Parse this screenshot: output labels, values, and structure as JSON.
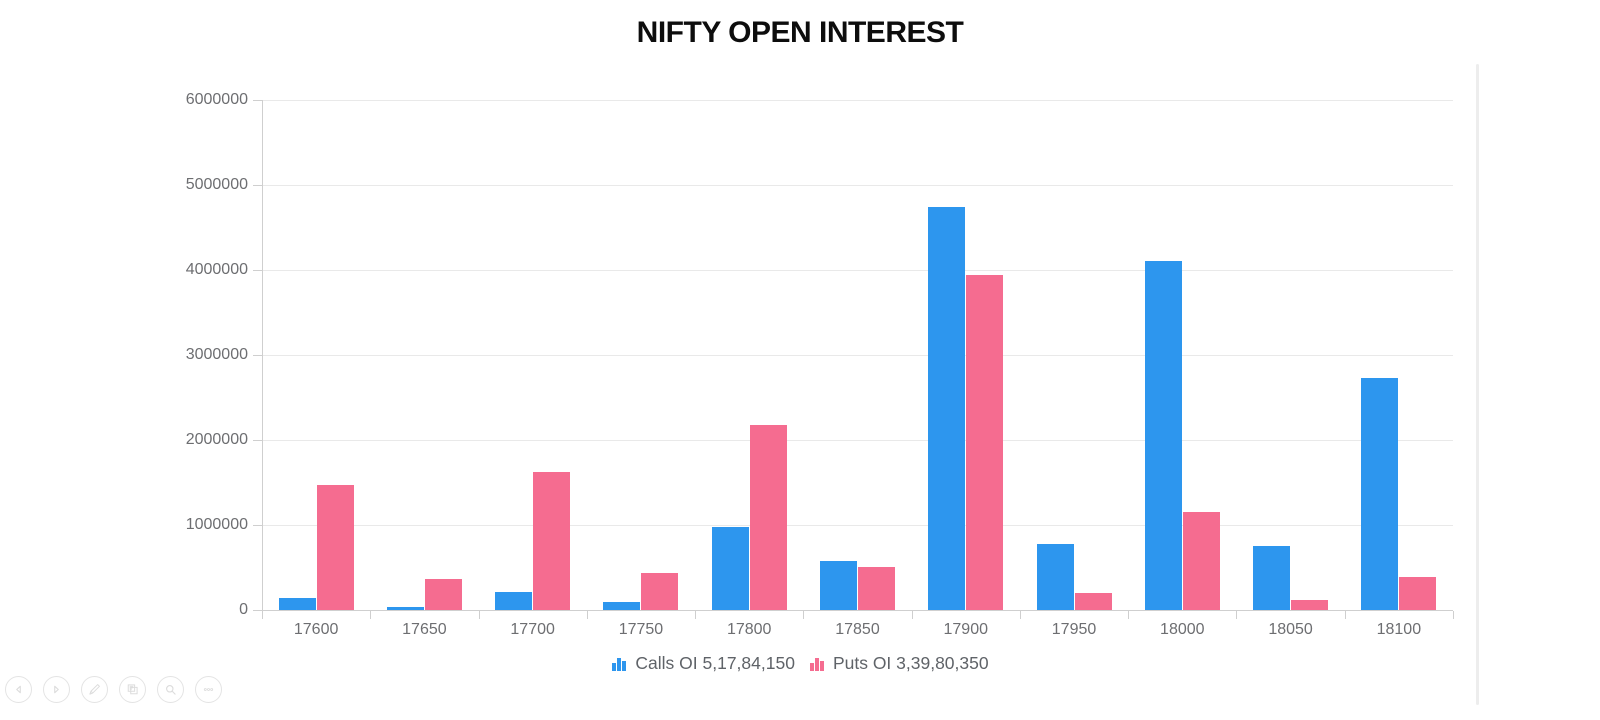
{
  "title": "NIFTY OPEN INTEREST",
  "chart_data": {
    "type": "bar",
    "title": "NIFTY OPEN INTEREST",
    "categories": [
      "17600",
      "17650",
      "17700",
      "17750",
      "17800",
      "17850",
      "17900",
      "17950",
      "18000",
      "18050",
      "18100"
    ],
    "series": [
      {
        "name": "Calls OI",
        "legend_label": "Calls OI 5,17,84,150",
        "color": "#2d96ee",
        "values": [
          140000,
          40000,
          210000,
          95000,
          980000,
          580000,
          4740000,
          775000,
          4100000,
          755000,
          2730000
        ]
      },
      {
        "name": "Puts OI",
        "legend_label": "Puts OI 3,39,80,350",
        "color": "#f56c90",
        "values": [
          1470000,
          370000,
          1620000,
          430000,
          2180000,
          500000,
          3940000,
          195000,
          1150000,
          120000,
          390000
        ]
      }
    ],
    "xlabel": "",
    "ylabel": "",
    "ylim": [
      0,
      6000000
    ],
    "y_ticks": [
      0,
      1000000,
      2000000,
      3000000,
      4000000,
      5000000,
      6000000
    ],
    "grid": true,
    "legend_position": "bottom"
  },
  "legend_totals": {
    "calls": "5,17,84,150",
    "puts": "3,39,80,350"
  },
  "nav": {
    "buttons": [
      {
        "label": "previous",
        "icon": "triangle-left-icon"
      },
      {
        "label": "next",
        "icon": "triangle-right-icon"
      },
      {
        "label": "edit",
        "icon": "pencil-icon"
      },
      {
        "label": "copy-view",
        "icon": "overlapping-squares-icon"
      },
      {
        "label": "zoom",
        "icon": "magnifier-icon"
      },
      {
        "label": "more",
        "icon": "ellipsis-icon"
      }
    ]
  },
  "colors": {
    "calls_blue": "#2d96ee",
    "puts_pink": "#f56c90",
    "axis_text": "#6d6e71",
    "legend_text": "#5f6368",
    "grid_line": "#e9e9e9",
    "axis_line": "#cfcfcf"
  }
}
